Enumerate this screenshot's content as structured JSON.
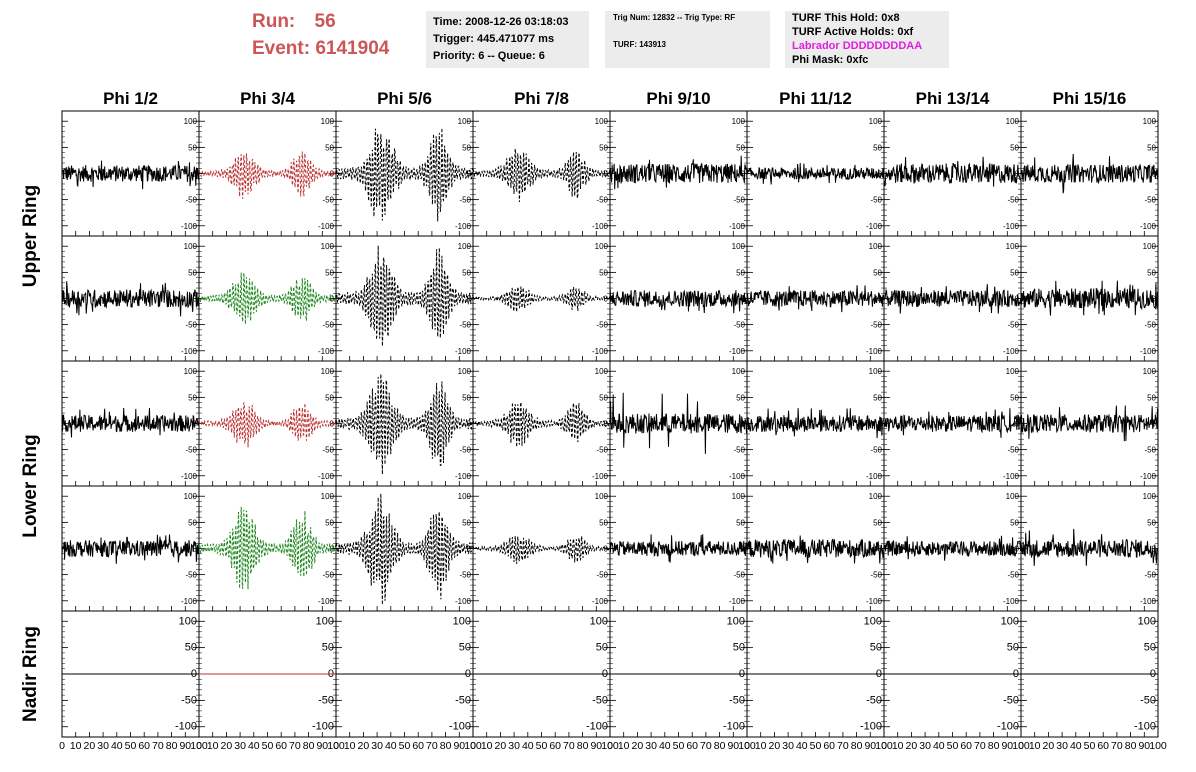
{
  "header": {
    "run_label": "Run:",
    "run_value": "56",
    "event_label": "Event:",
    "event_value": "6141904",
    "time": "Time: 2008-12-26 03:18:03",
    "trigger": "Trigger: 445.471077 ms",
    "priority": "Priority: 6 -- Queue: 6",
    "trig_num": "Trig Num: 12832 -- Trig Type: RF",
    "turf": "TURF: 143913",
    "turf_hold": "TURF This Hold: 0x8",
    "turf_active": "TURF Active Holds: 0xf",
    "labrador": "Labrador DDDDDDDDAA",
    "phi_mask": "Phi Mask: 0xfc"
  },
  "chart_data": {
    "type": "line",
    "columns": [
      "Phi 1/2",
      "Phi 3/4",
      "Phi 5/6",
      "Phi 7/8",
      "Phi 9/10",
      "Phi 11/12",
      "Phi 13/14",
      "Phi 15/16"
    ],
    "rows": [
      "Upper Ring",
      "Upper Ring",
      "Lower Ring",
      "Lower Ring",
      "Nadir Ring"
    ],
    "row_labels": [
      {
        "text": "Upper Ring",
        "rows": [
          0,
          1
        ]
      },
      {
        "text": "Lower Ring",
        "rows": [
          2,
          3
        ]
      },
      {
        "text": "Nadir Ring",
        "rows": [
          4
        ]
      }
    ],
    "xlim": [
      0,
      100
    ],
    "ylim": [
      -110,
      110
    ],
    "yticks": [
      100,
      50,
      0,
      -50,
      -100
    ],
    "ytick_labels": [
      "100",
      "50",
      "0",
      "-50",
      "-100"
    ],
    "xticks": [
      0,
      10,
      20,
      30,
      40,
      50,
      60,
      70,
      80,
      90,
      100
    ],
    "xtick_labels": [
      "0",
      "10",
      "20",
      "30",
      "40",
      "50",
      "60",
      "70",
      "80",
      "90",
      "100"
    ],
    "waveforms": [
      [
        {
          "style": "solid",
          "color": "#000000",
          "rms": 10,
          "peak": 30,
          "shape": "noise"
        },
        {
          "style": "dashed",
          "color": "#bb3333",
          "rms": 15,
          "peak": 48,
          "shape": "burst2"
        },
        {
          "style": "dashed",
          "color": "#000000",
          "rms": 30,
          "peak": 100,
          "shape": "burst2"
        },
        {
          "style": "dashed",
          "color": "#000000",
          "rms": 15,
          "peak": 52,
          "shape": "burst2"
        },
        {
          "style": "solid",
          "color": "#000000",
          "rms": 12,
          "peak": 35,
          "shape": "noise"
        },
        {
          "style": "solid",
          "color": "#000000",
          "rms": 7,
          "peak": 22,
          "shape": "noise"
        },
        {
          "style": "solid",
          "color": "#000000",
          "rms": 12,
          "peak": 32,
          "shape": "noise"
        },
        {
          "style": "solid",
          "color": "#000000",
          "rms": 11,
          "peak": 38,
          "shape": "noise"
        }
      ],
      [
        {
          "style": "solid",
          "color": "#000000",
          "rms": 11,
          "peak": 35,
          "shape": "noise"
        },
        {
          "style": "dashed",
          "color": "#228822",
          "rms": 17,
          "peak": 55,
          "shape": "burst2"
        },
        {
          "style": "dashed",
          "color": "#000000",
          "rms": 30,
          "peak": 100,
          "shape": "burst2"
        },
        {
          "style": "dashed",
          "color": "#000000",
          "rms": 8,
          "peak": 25,
          "shape": "burst2"
        },
        {
          "style": "solid",
          "color": "#000000",
          "rms": 10,
          "peak": 30,
          "shape": "noise"
        },
        {
          "style": "solid",
          "color": "#000000",
          "rms": 10,
          "peak": 28,
          "shape": "noise"
        },
        {
          "style": "solid",
          "color": "#000000",
          "rms": 10,
          "peak": 30,
          "shape": "noise"
        },
        {
          "style": "solid",
          "color": "#000000",
          "rms": 12,
          "peak": 35,
          "shape": "noise"
        }
      ],
      [
        {
          "style": "solid",
          "color": "#000000",
          "rms": 10,
          "peak": 30,
          "shape": "noise"
        },
        {
          "style": "dashed",
          "color": "#bb3333",
          "rms": 14,
          "peak": 45,
          "shape": "burst2"
        },
        {
          "style": "dashed",
          "color": "#000000",
          "rms": 30,
          "peak": 95,
          "shape": "burst2"
        },
        {
          "style": "dashed",
          "color": "#000000",
          "rms": 14,
          "peak": 45,
          "shape": "burst2"
        },
        {
          "style": "solid",
          "color": "#000000",
          "rms": 12,
          "peak": 60,
          "shape": "noise"
        },
        {
          "style": "solid",
          "color": "#000000",
          "rms": 10,
          "peak": 30,
          "shape": "noise"
        },
        {
          "style": "solid",
          "color": "#000000",
          "rms": 10,
          "peak": 30,
          "shape": "noise"
        },
        {
          "style": "solid",
          "color": "#000000",
          "rms": 11,
          "peak": 35,
          "shape": "noise"
        }
      ],
      [
        {
          "style": "solid",
          "color": "#000000",
          "rms": 10,
          "peak": 30,
          "shape": "noise"
        },
        {
          "style": "dashed",
          "color": "#228822",
          "rms": 22,
          "peak": 80,
          "shape": "burst2"
        },
        {
          "style": "dashed",
          "color": "#000000",
          "rms": 30,
          "peak": 100,
          "shape": "burst2"
        },
        {
          "style": "dashed",
          "color": "#000000",
          "rms": 8,
          "peak": 30,
          "shape": "burst2"
        },
        {
          "style": "solid",
          "color": "#000000",
          "rms": 9,
          "peak": 28,
          "shape": "noise"
        },
        {
          "style": "solid",
          "color": "#000000",
          "rms": 11,
          "peak": 32,
          "shape": "noise"
        },
        {
          "style": "solid",
          "color": "#000000",
          "rms": 9,
          "peak": 25,
          "shape": "noise"
        },
        {
          "style": "solid",
          "color": "#000000",
          "rms": 11,
          "peak": 38,
          "shape": "noise"
        }
      ],
      [
        {
          "style": "solid",
          "color": "#000000",
          "rms": 0,
          "peak": 0,
          "shape": "flat"
        },
        {
          "style": "solid",
          "color": "#bb3333",
          "rms": 0,
          "peak": 0,
          "shape": "flat"
        },
        {
          "style": "solid",
          "color": "#000000",
          "rms": 0,
          "peak": 0,
          "shape": "flat"
        },
        {
          "style": "solid",
          "color": "#000000",
          "rms": 0,
          "peak": 0,
          "shape": "flat"
        },
        {
          "style": "solid",
          "color": "#000000",
          "rms": 0,
          "peak": 0,
          "shape": "flat"
        },
        {
          "style": "solid",
          "color": "#000000",
          "rms": 0,
          "peak": 0,
          "shape": "flat"
        },
        {
          "style": "solid",
          "color": "#000000",
          "rms": 0,
          "peak": 0,
          "shape": "flat"
        },
        {
          "style": "solid",
          "color": "#000000",
          "rms": 0,
          "peak": 0,
          "shape": "flat"
        }
      ]
    ]
  }
}
